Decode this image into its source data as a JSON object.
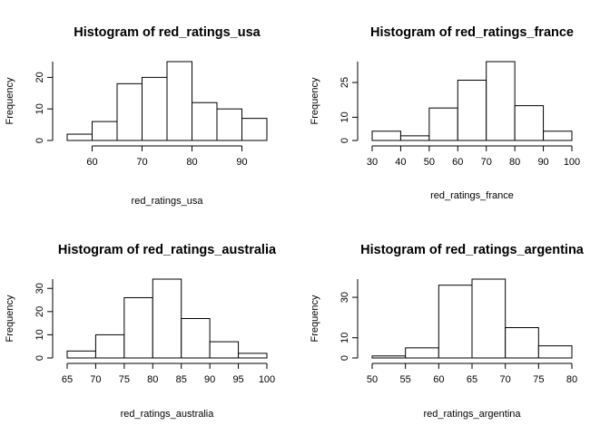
{
  "chart_data": [
    {
      "type": "bar",
      "title": "Histogram of red_ratings_usa",
      "xlabel": "red_ratings_usa",
      "ylabel": "Frequency",
      "bins": [
        [
          55,
          60
        ],
        [
          60,
          65
        ],
        [
          65,
          70
        ],
        [
          70,
          75
        ],
        [
          75,
          80
        ],
        [
          80,
          85
        ],
        [
          85,
          90
        ],
        [
          90,
          95
        ]
      ],
      "values": [
        2,
        6,
        18,
        20,
        25,
        12,
        10,
        7
      ],
      "xticks": [
        60,
        70,
        80,
        90
      ],
      "yticks": [
        0,
        10,
        20
      ],
      "xlim": [
        55,
        95
      ],
      "ylim": [
        0,
        25
      ]
    },
    {
      "type": "bar",
      "title": "Histogram of red_ratings_france",
      "xlabel": "red_ratings_france",
      "ylabel": "Frequency",
      "bins": [
        [
          30,
          40
        ],
        [
          40,
          50
        ],
        [
          50,
          60
        ],
        [
          60,
          70
        ],
        [
          70,
          80
        ],
        [
          80,
          90
        ],
        [
          90,
          100
        ]
      ],
      "values": [
        4,
        2,
        14,
        26,
        34,
        15,
        4
      ],
      "xticks": [
        30,
        40,
        50,
        60,
        70,
        80,
        90,
        100
      ],
      "yticks": [
        0,
        10,
        25
      ],
      "xlim": [
        30,
        100
      ],
      "ylim": [
        0,
        34
      ]
    },
    {
      "type": "bar",
      "title": "Histogram of red_ratings_australia",
      "xlabel": "red_ratings_australia",
      "ylabel": "Frequency",
      "bins": [
        [
          65,
          70
        ],
        [
          70,
          75
        ],
        [
          75,
          80
        ],
        [
          80,
          85
        ],
        [
          85,
          90
        ],
        [
          90,
          95
        ],
        [
          95,
          100
        ]
      ],
      "values": [
        3,
        10,
        26,
        34,
        17,
        7,
        2
      ],
      "xticks": [
        65,
        70,
        75,
        80,
        85,
        90,
        95,
        100
      ],
      "yticks": [
        0,
        10,
        20,
        30
      ],
      "xlim": [
        65,
        100
      ],
      "ylim": [
        0,
        34
      ]
    },
    {
      "type": "bar",
      "title": "Histogram of red_ratings_argentina",
      "xlabel": "red_ratings_argentina",
      "ylabel": "Frequency",
      "bins": [
        [
          50,
          55
        ],
        [
          55,
          60
        ],
        [
          60,
          65
        ],
        [
          65,
          70
        ],
        [
          70,
          75
        ],
        [
          75,
          80
        ]
      ],
      "values": [
        1,
        5,
        36,
        39,
        15,
        6
      ],
      "xticks": [
        50,
        55,
        60,
        65,
        70,
        75,
        80
      ],
      "yticks": [
        0,
        10,
        30
      ],
      "xlim": [
        50,
        80
      ],
      "ylim": [
        0,
        39
      ]
    }
  ]
}
